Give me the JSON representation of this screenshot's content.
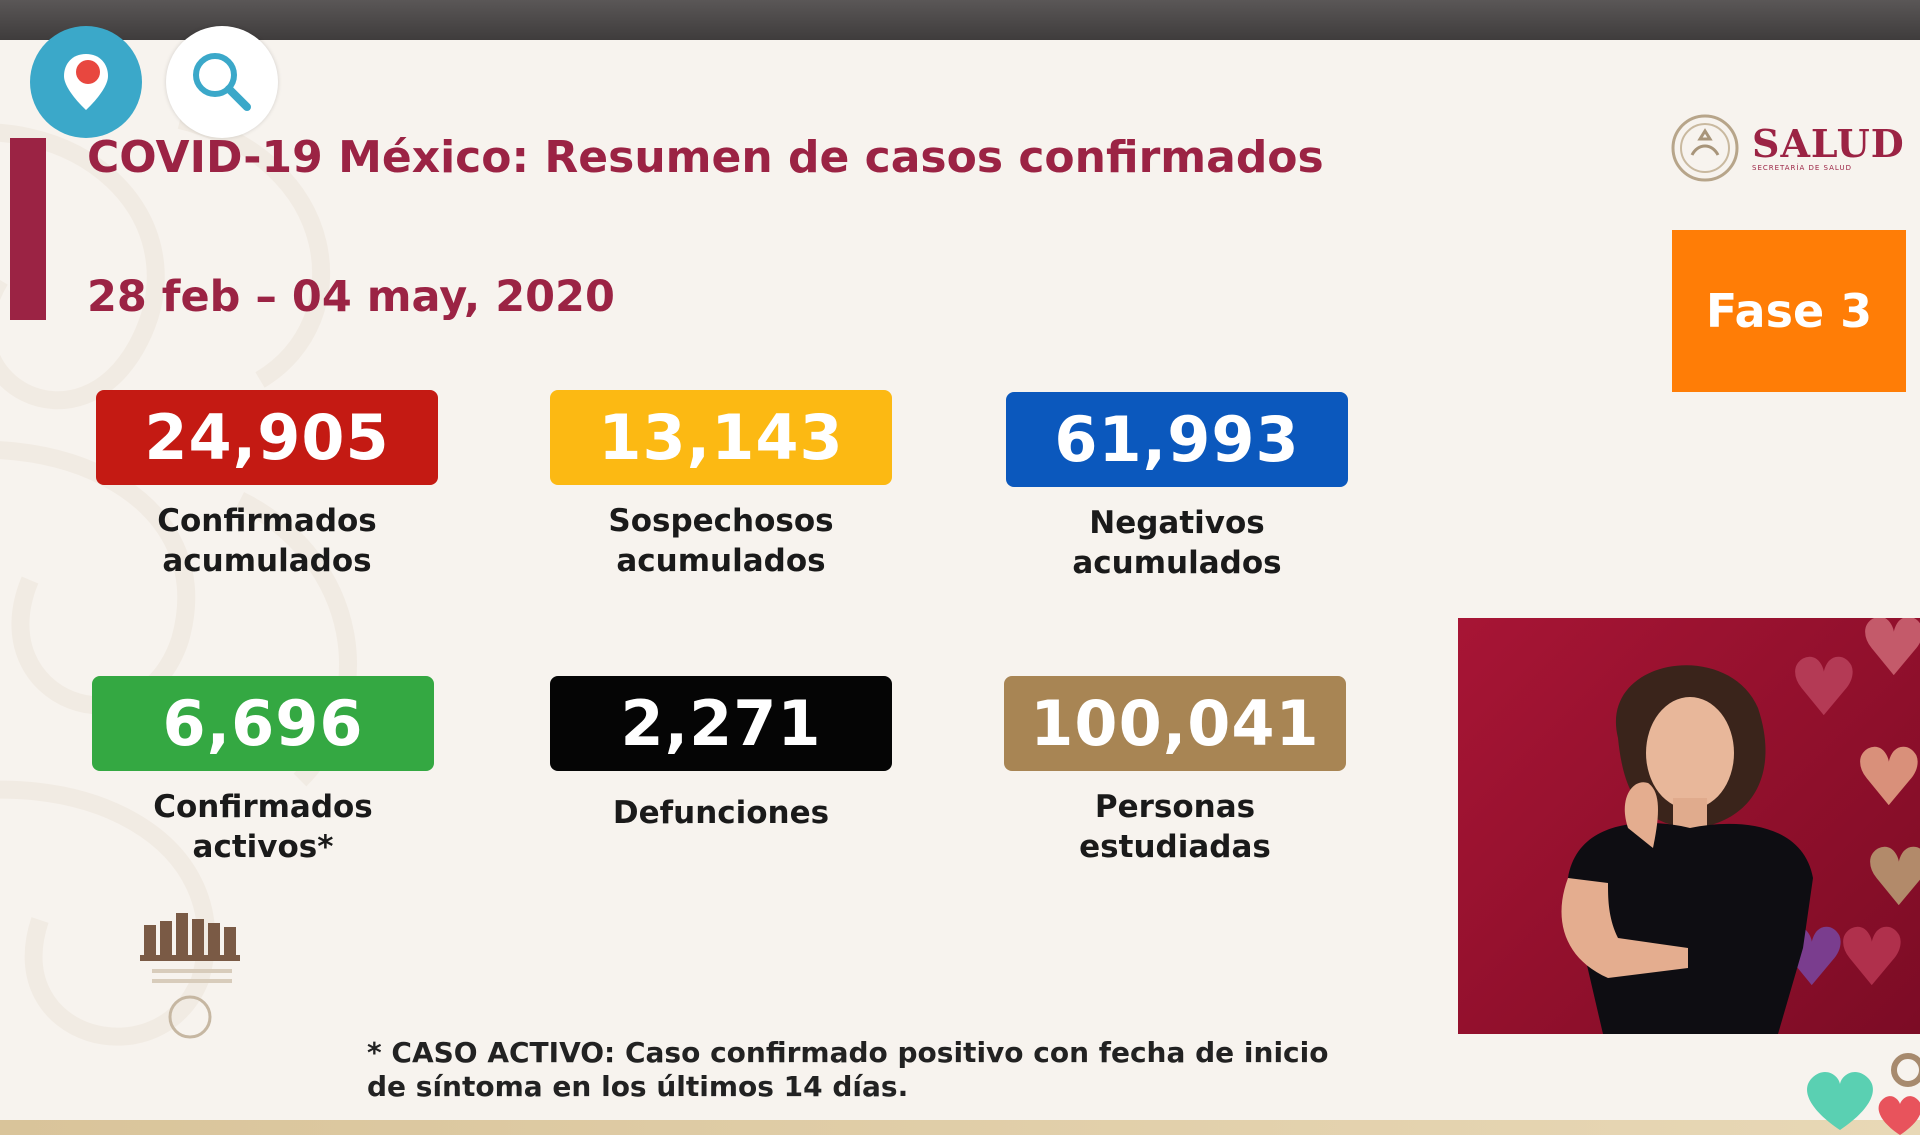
{
  "slide": {
    "title": "COVID-19 México: Resumen de casos confirmados",
    "date_range": "28 feb – 04 may, 2020",
    "phase_label": "Fase 3",
    "logo": {
      "main": "SALUD",
      "sub": "SECRETARÍA DE SALUD",
      "icon": "mexico-coat-of-arms-icon"
    },
    "stats": [
      {
        "value": "24,905",
        "label_line1": "Confirmados",
        "label_line2": "acumulados",
        "color": "#c41a13"
      },
      {
        "value": "13,143",
        "label_line1": "Sospechosos",
        "label_line2": "acumulados",
        "color": "#fcb913"
      },
      {
        "value": "61,993",
        "label_line1": "Negativos",
        "label_line2": "acumulados",
        "color": "#0b58bd"
      },
      {
        "value": "6,696",
        "label_line1": "Confirmados",
        "label_line2": "activos*",
        "color": "#34a842"
      },
      {
        "value": "2,271",
        "label_line1": "Defunciones",
        "label_line2": "",
        "color": "#050505"
      },
      {
        "value": "100,041",
        "label_line1": "Personas",
        "label_line2": "estudiadas",
        "color": "#a88554"
      }
    ],
    "footnote_line1": "* CASO ACTIVO: Caso confirmado positivo con fecha de inicio",
    "footnote_line2": "de síntoma en los últimos 14 días."
  },
  "overlay_buttons": [
    {
      "name": "periscope-pin-icon",
      "color": "#3ba8c9"
    },
    {
      "name": "search-icon",
      "color": "#ffffff"
    }
  ],
  "colors": {
    "accent": "#9b2344",
    "phase": "#ff7d06",
    "background": "#f7f3ee"
  }
}
